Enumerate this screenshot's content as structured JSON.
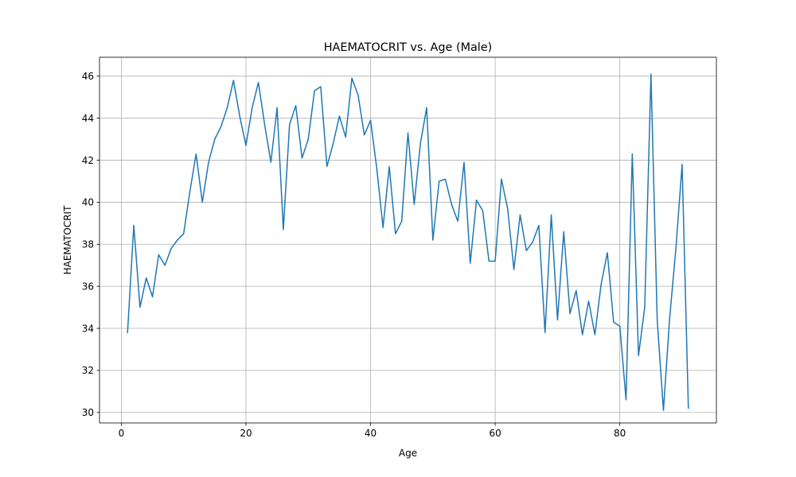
{
  "chart_data": {
    "type": "line",
    "title": "HAEMATOCRIT vs. Age (Male)",
    "xlabel": "Age",
    "ylabel": "HAEMATOCRIT",
    "xlim": [
      -3.5,
      95.5
    ],
    "ylim": [
      29.5,
      46.9
    ],
    "xticks": [
      0,
      20,
      40,
      60,
      80
    ],
    "yticks": [
      30,
      32,
      34,
      36,
      38,
      40,
      42,
      44,
      46
    ],
    "grid": true,
    "series_color": "#1f77b4",
    "series": [
      {
        "x": [
          1,
          2,
          3,
          4,
          5,
          6,
          7,
          8,
          9,
          10,
          11,
          12,
          13,
          14,
          15,
          16,
          17,
          18,
          19,
          20,
          21,
          22,
          23,
          24,
          25,
          26,
          27,
          28,
          29,
          30,
          31,
          32,
          33,
          34,
          35,
          36,
          37,
          38,
          39,
          40,
          41,
          42,
          43,
          44,
          45,
          46,
          47,
          48,
          49,
          50,
          51,
          52,
          53,
          54,
          55,
          56,
          57,
          58,
          59,
          60,
          61,
          62,
          63,
          64,
          65,
          66,
          67,
          68,
          69,
          70,
          71,
          72,
          73,
          74,
          75,
          76,
          77,
          78,
          79,
          80,
          81,
          82,
          83,
          84,
          85,
          86,
          87,
          88,
          89,
          90,
          91
        ],
        "values": [
          33.8,
          38.9,
          35.0,
          36.4,
          35.5,
          37.5,
          37.0,
          37.8,
          38.2,
          38.5,
          40.5,
          42.3,
          40.0,
          41.9,
          43.0,
          43.6,
          44.5,
          45.8,
          44.1,
          42.7,
          44.5,
          45.7,
          43.7,
          41.9,
          44.5,
          38.7,
          43.7,
          44.6,
          42.1,
          43.0,
          45.3,
          45.5,
          41.7,
          42.8,
          44.1,
          43.1,
          45.9,
          45.1,
          43.2,
          43.9,
          41.6,
          38.8,
          41.7,
          38.5,
          39.1,
          43.3,
          39.9,
          42.8,
          44.5,
          38.2,
          41.0,
          41.1,
          39.9,
          39.1,
          41.9,
          37.1,
          40.1,
          39.6,
          37.2,
          37.2,
          41.1,
          39.7,
          36.8,
          39.4,
          37.7,
          38.1,
          38.9,
          33.8,
          39.4,
          34.4,
          38.6,
          34.7,
          35.8,
          33.7,
          35.3,
          33.7,
          36.1,
          37.6,
          34.3,
          34.1,
          30.6,
          42.3,
          32.7,
          35.0,
          46.1,
          34.4,
          30.1,
          34.5,
          37.8,
          41.8,
          30.2
        ]
      }
    ]
  }
}
